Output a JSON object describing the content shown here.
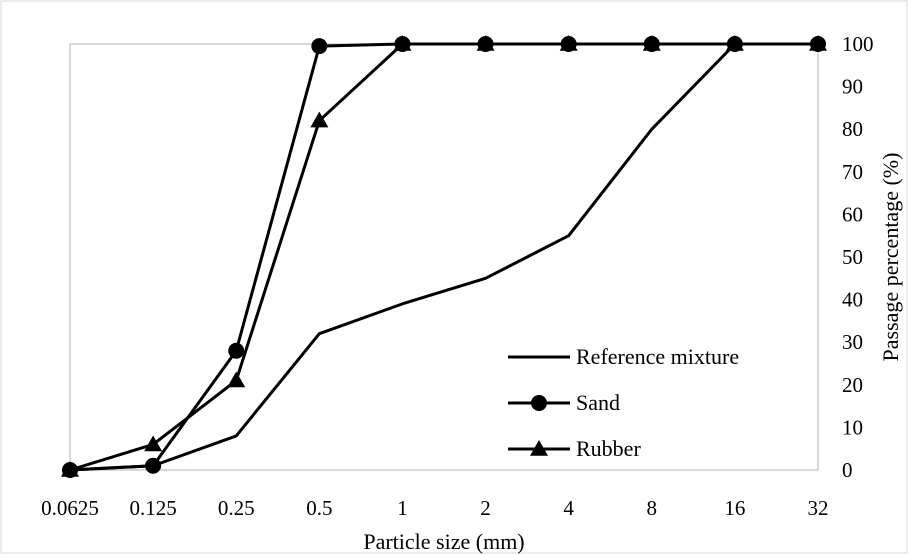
{
  "chart_data": {
    "type": "line",
    "xlabel": "Particle size (mm)",
    "ylabel": "Passage percentage (%)",
    "x_scale": "log2",
    "categories": [
      "0.0625",
      "0.125",
      "0.25",
      "0.5",
      "1",
      "2",
      "4",
      "8",
      "16",
      "32"
    ],
    "x": [
      0.0625,
      0.125,
      0.25,
      0.5,
      1,
      2,
      4,
      8,
      16,
      32
    ],
    "ylim": [
      0,
      100
    ],
    "yticks": [
      0,
      10,
      20,
      30,
      40,
      50,
      60,
      70,
      80,
      90,
      100
    ],
    "y_axis_side": "right",
    "grid": false,
    "legend_position": "bottom-right",
    "series": [
      {
        "name": "Reference mixture",
        "marker": "none",
        "values": [
          0,
          1,
          8,
          32,
          39,
          45,
          55,
          80,
          100,
          100
        ]
      },
      {
        "name": "Sand",
        "marker": "circle",
        "values": [
          0,
          1,
          28,
          99.5,
          100,
          100,
          100,
          100,
          100,
          100
        ]
      },
      {
        "name": "Rubber",
        "marker": "triangle",
        "values": [
          0,
          6,
          21,
          82,
          100,
          100,
          100,
          100,
          100,
          100
        ]
      }
    ]
  }
}
